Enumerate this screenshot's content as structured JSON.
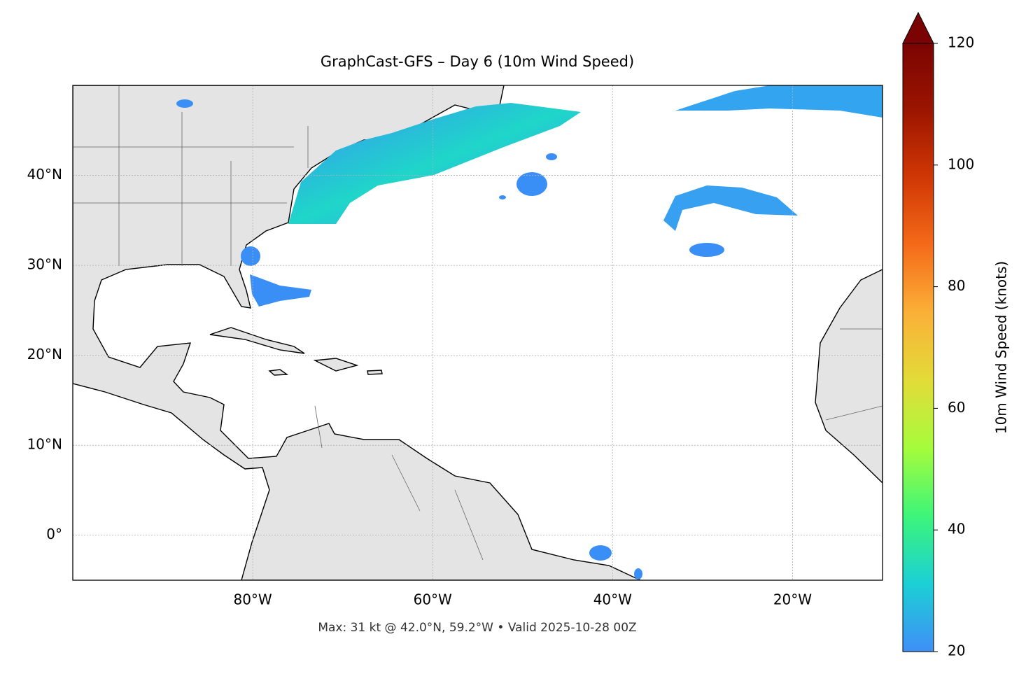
{
  "chart_data": {
    "type": "map",
    "title": "GraphCast-GFS – Day 6 (10m Wind Speed)",
    "footnote": "Max: 31 kt @ 42.0°N, 59.2°W • Valid 2025-10-28 00Z",
    "xlim": [
      -100,
      -10
    ],
    "ylim": [
      -5,
      50
    ],
    "xticks": [
      {
        "value": -80,
        "label": "80°W"
      },
      {
        "value": -60,
        "label": "60°W"
      },
      {
        "value": -40,
        "label": "40°W"
      },
      {
        "value": -20,
        "label": "20°W"
      }
    ],
    "yticks": [
      {
        "value": 40,
        "label": "40°N"
      },
      {
        "value": 30,
        "label": "30°N"
      },
      {
        "value": 20,
        "label": "20°N"
      },
      {
        "value": 10,
        "label": "10°N"
      },
      {
        "value": 0,
        "label": "0°"
      }
    ],
    "grid": true,
    "colorbar": {
      "label": "10m Wind Speed (knots)",
      "lim": [
        20,
        120
      ],
      "ticks": [
        20,
        40,
        60,
        80,
        100,
        120
      ],
      "colors": [
        "#3f8ff7",
        "#1bd0d5",
        "#3cf57a",
        "#a5fc3c",
        "#e2dc38",
        "#fbb138",
        "#f56b19",
        "#d13805",
        "#9c1500",
        "#7a0403"
      ]
    }
  }
}
